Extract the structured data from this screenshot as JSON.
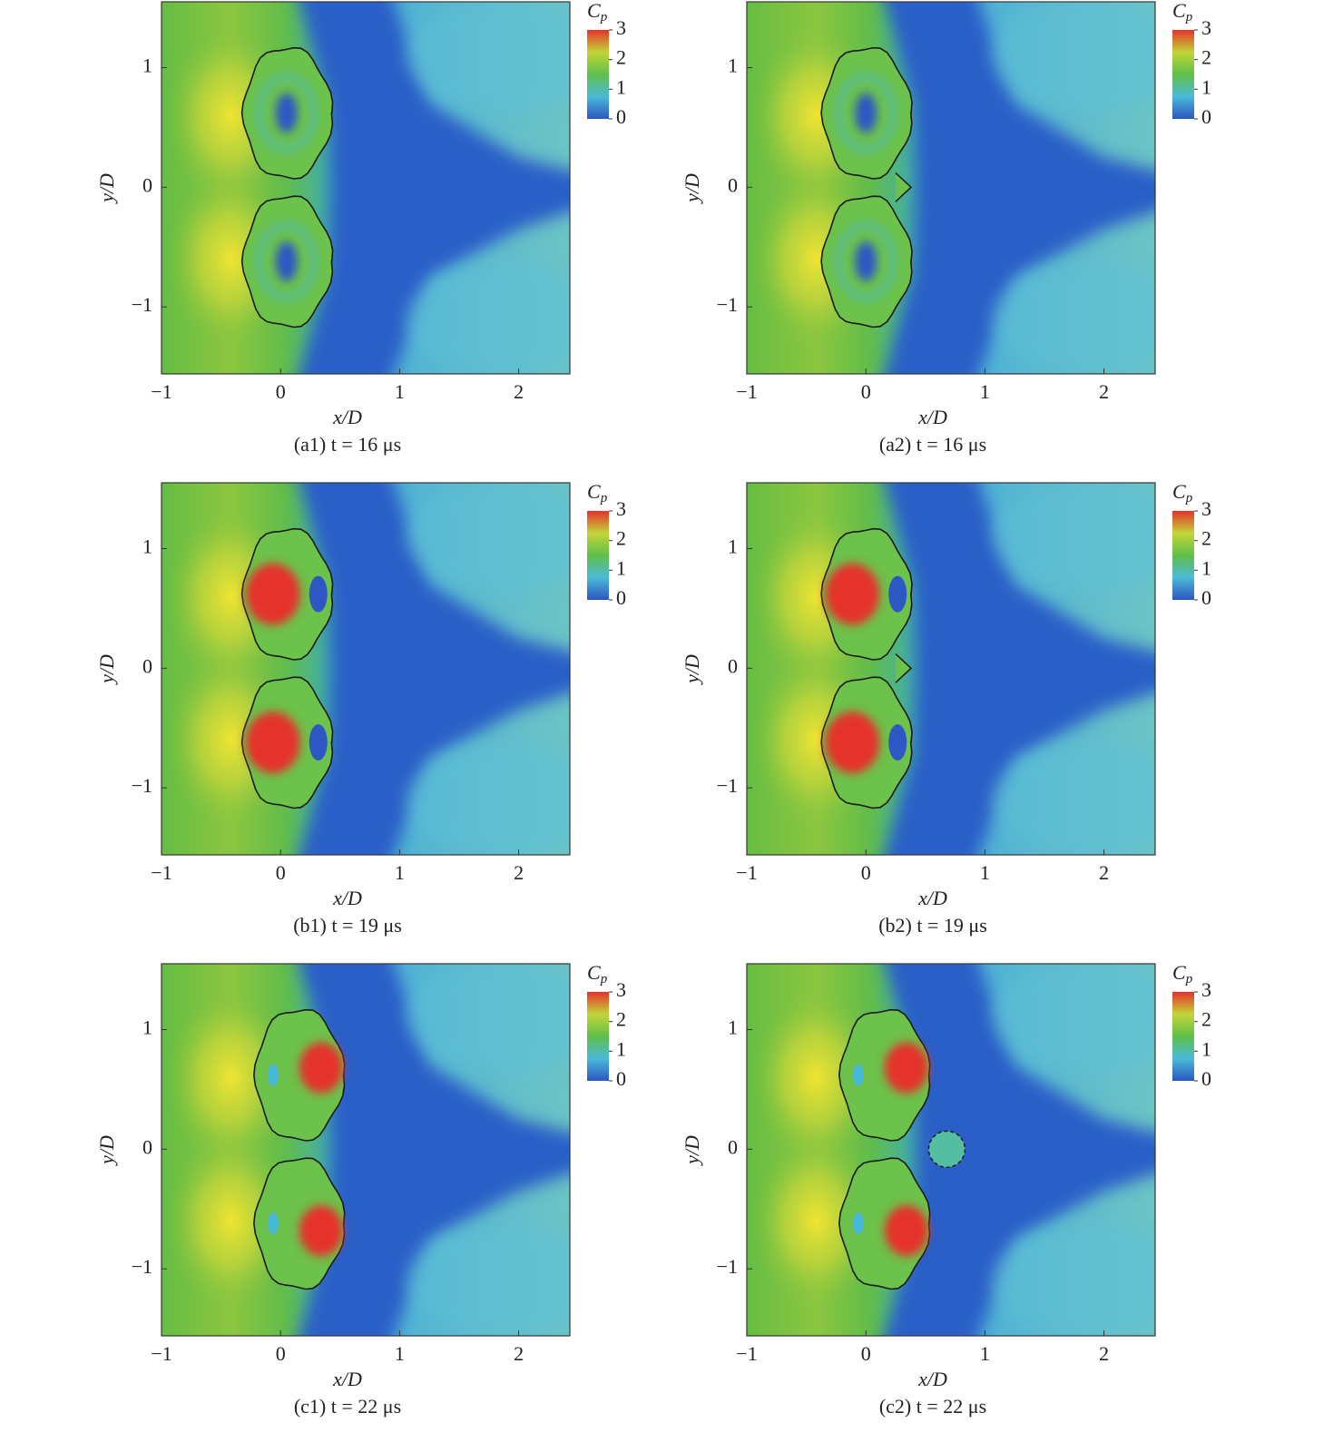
{
  "chart_data": [
    {
      "type": "heatmap",
      "caption": "(a1) t = 16 μs",
      "xlabel": "x/D",
      "ylabel": "y/D",
      "xlim": [
        -1,
        2.43
      ],
      "ylim": [
        -1.56,
        1.55
      ],
      "xticks": [
        {
          "value": -1,
          "label": "−1"
        },
        0,
        1,
        2
      ],
      "yticks": [
        {
          "value": -1,
          "label": "−1"
        },
        0,
        1
      ],
      "colorbar": {
        "label": "C",
        "label_sub": "p",
        "lim": [
          0,
          3
        ],
        "ticks": [
          0,
          1,
          2,
          3
        ],
        "colors": [
          "#2c55c2",
          "#4bbad8",
          "#5fbf4a",
          "#c3d538",
          "#e5322a"
        ]
      }
    },
    {
      "type": "heatmap",
      "caption": "(a2) t = 16 μs",
      "xlabel": "x/D",
      "ylabel": "y/D",
      "xlim": [
        -1,
        2.43
      ],
      "ylim": [
        -1.56,
        1.55
      ],
      "xticks": [
        {
          "value": -1,
          "label": "−1"
        },
        0,
        1,
        2
      ],
      "yticks": [
        {
          "value": -1,
          "label": "−1"
        },
        0,
        1
      ],
      "colorbar": {
        "label": "C",
        "label_sub": "p",
        "lim": [
          0,
          3
        ],
        "ticks": [
          0,
          1,
          2,
          3
        ],
        "colors": [
          "#2c55c2",
          "#4bbad8",
          "#5fbf4a",
          "#c3d538",
          "#e5322a"
        ]
      }
    },
    {
      "type": "heatmap",
      "caption": "(b1) t = 19 μs",
      "xlabel": "x/D",
      "ylabel": "y/D",
      "xlim": [
        -1,
        2.43
      ],
      "ylim": [
        -1.56,
        1.55
      ],
      "xticks": [
        {
          "value": -1,
          "label": "−1"
        },
        0,
        1,
        2
      ],
      "yticks": [
        {
          "value": -1,
          "label": "−1"
        },
        0,
        1
      ],
      "colorbar": {
        "label": "C",
        "label_sub": "p",
        "lim": [
          0,
          3
        ],
        "ticks": [
          0,
          1,
          2,
          3
        ],
        "colors": [
          "#2c55c2",
          "#4bbad8",
          "#5fbf4a",
          "#c3d538",
          "#e5322a"
        ]
      }
    },
    {
      "type": "heatmap",
      "caption": "(b2) t = 19 μs",
      "xlabel": "x/D",
      "ylabel": "y/D",
      "xlim": [
        -1,
        2.43
      ],
      "ylim": [
        -1.56,
        1.55
      ],
      "xticks": [
        {
          "value": -1,
          "label": "−1"
        },
        0,
        1,
        2
      ],
      "yticks": [
        {
          "value": -1,
          "label": "−1"
        },
        0,
        1
      ],
      "colorbar": {
        "label": "C",
        "label_sub": "p",
        "lim": [
          0,
          3
        ],
        "ticks": [
          0,
          1,
          2,
          3
        ],
        "colors": [
          "#2c55c2",
          "#4bbad8",
          "#5fbf4a",
          "#c3d538",
          "#e5322a"
        ]
      }
    },
    {
      "type": "heatmap",
      "caption": "(c1) t = 22 μs",
      "xlabel": "x/D",
      "ylabel": "y/D",
      "xlim": [
        -1,
        2.43
      ],
      "ylim": [
        -1.56,
        1.55
      ],
      "xticks": [
        {
          "value": -1,
          "label": "−1"
        },
        0,
        1,
        2
      ],
      "yticks": [
        {
          "value": -1,
          "label": "−1"
        },
        0,
        1
      ],
      "colorbar": {
        "label": "C",
        "label_sub": "p",
        "lim": [
          0,
          3
        ],
        "ticks": [
          0,
          1,
          2,
          3
        ],
        "colors": [
          "#2c55c2",
          "#4bbad8",
          "#5fbf4a",
          "#c3d538",
          "#e5322a"
        ]
      }
    },
    {
      "type": "heatmap",
      "caption": "(c2) t = 22 μs",
      "xlabel": "x/D",
      "ylabel": "y/D",
      "xlim": [
        -1,
        2.43
      ],
      "ylim": [
        -1.56,
        1.55
      ],
      "xticks": [
        {
          "value": -1,
          "label": "−1"
        },
        0,
        1,
        2
      ],
      "yticks": [
        {
          "value": -1,
          "label": "−1"
        },
        0,
        1
      ],
      "colorbar": {
        "label": "C",
        "label_sub": "p",
        "lim": [
          0,
          3
        ],
        "ticks": [
          0,
          1,
          2,
          3
        ],
        "colors": [
          "#2c55c2",
          "#4bbad8",
          "#5fbf4a",
          "#c3d538",
          "#e5322a"
        ]
      }
    }
  ]
}
